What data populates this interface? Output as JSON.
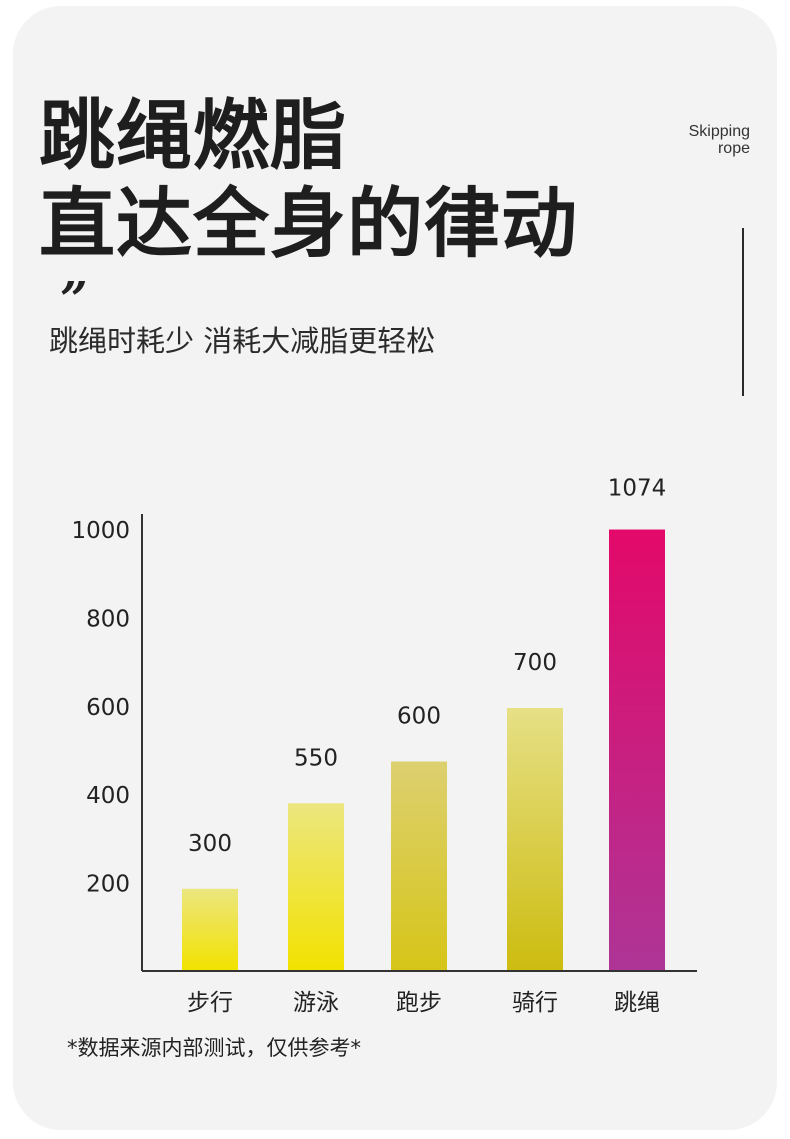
{
  "headline": {
    "line1": "跳绳燃脂",
    "line2": "直达全身的律动"
  },
  "english_tag": {
    "line1": "Skipping",
    "line2": "rope"
  },
  "quote_mark": "”",
  "subtitle": "跳绳时耗少 消耗大减脂更轻松",
  "footnote": "*数据来源内部测试，仅供参考*",
  "colors": {
    "background": "#f3f3f3",
    "text": "#1e1e1e",
    "bar_yellow_top": "#ece67f",
    "bar_yellow_bottom": "#f2e200",
    "bar_olive_bottom": "#cdbc10",
    "bar_magenta_top": "#e3096a",
    "bar_magenta_bottom": "#ae3596"
  },
  "chart_data": {
    "type": "bar",
    "categories": [
      "步行",
      "游泳",
      "跑步",
      "骑行",
      "跳绳"
    ],
    "values": [
      300,
      550,
      600,
      700,
      1074
    ],
    "value_labels": [
      "300",
      "550",
      "600",
      "700",
      "1074"
    ],
    "yticks": [
      "200",
      "400",
      "600",
      "800",
      "1000"
    ],
    "ylim": [
      0,
      1000
    ],
    "grid": false,
    "legend": "none"
  }
}
